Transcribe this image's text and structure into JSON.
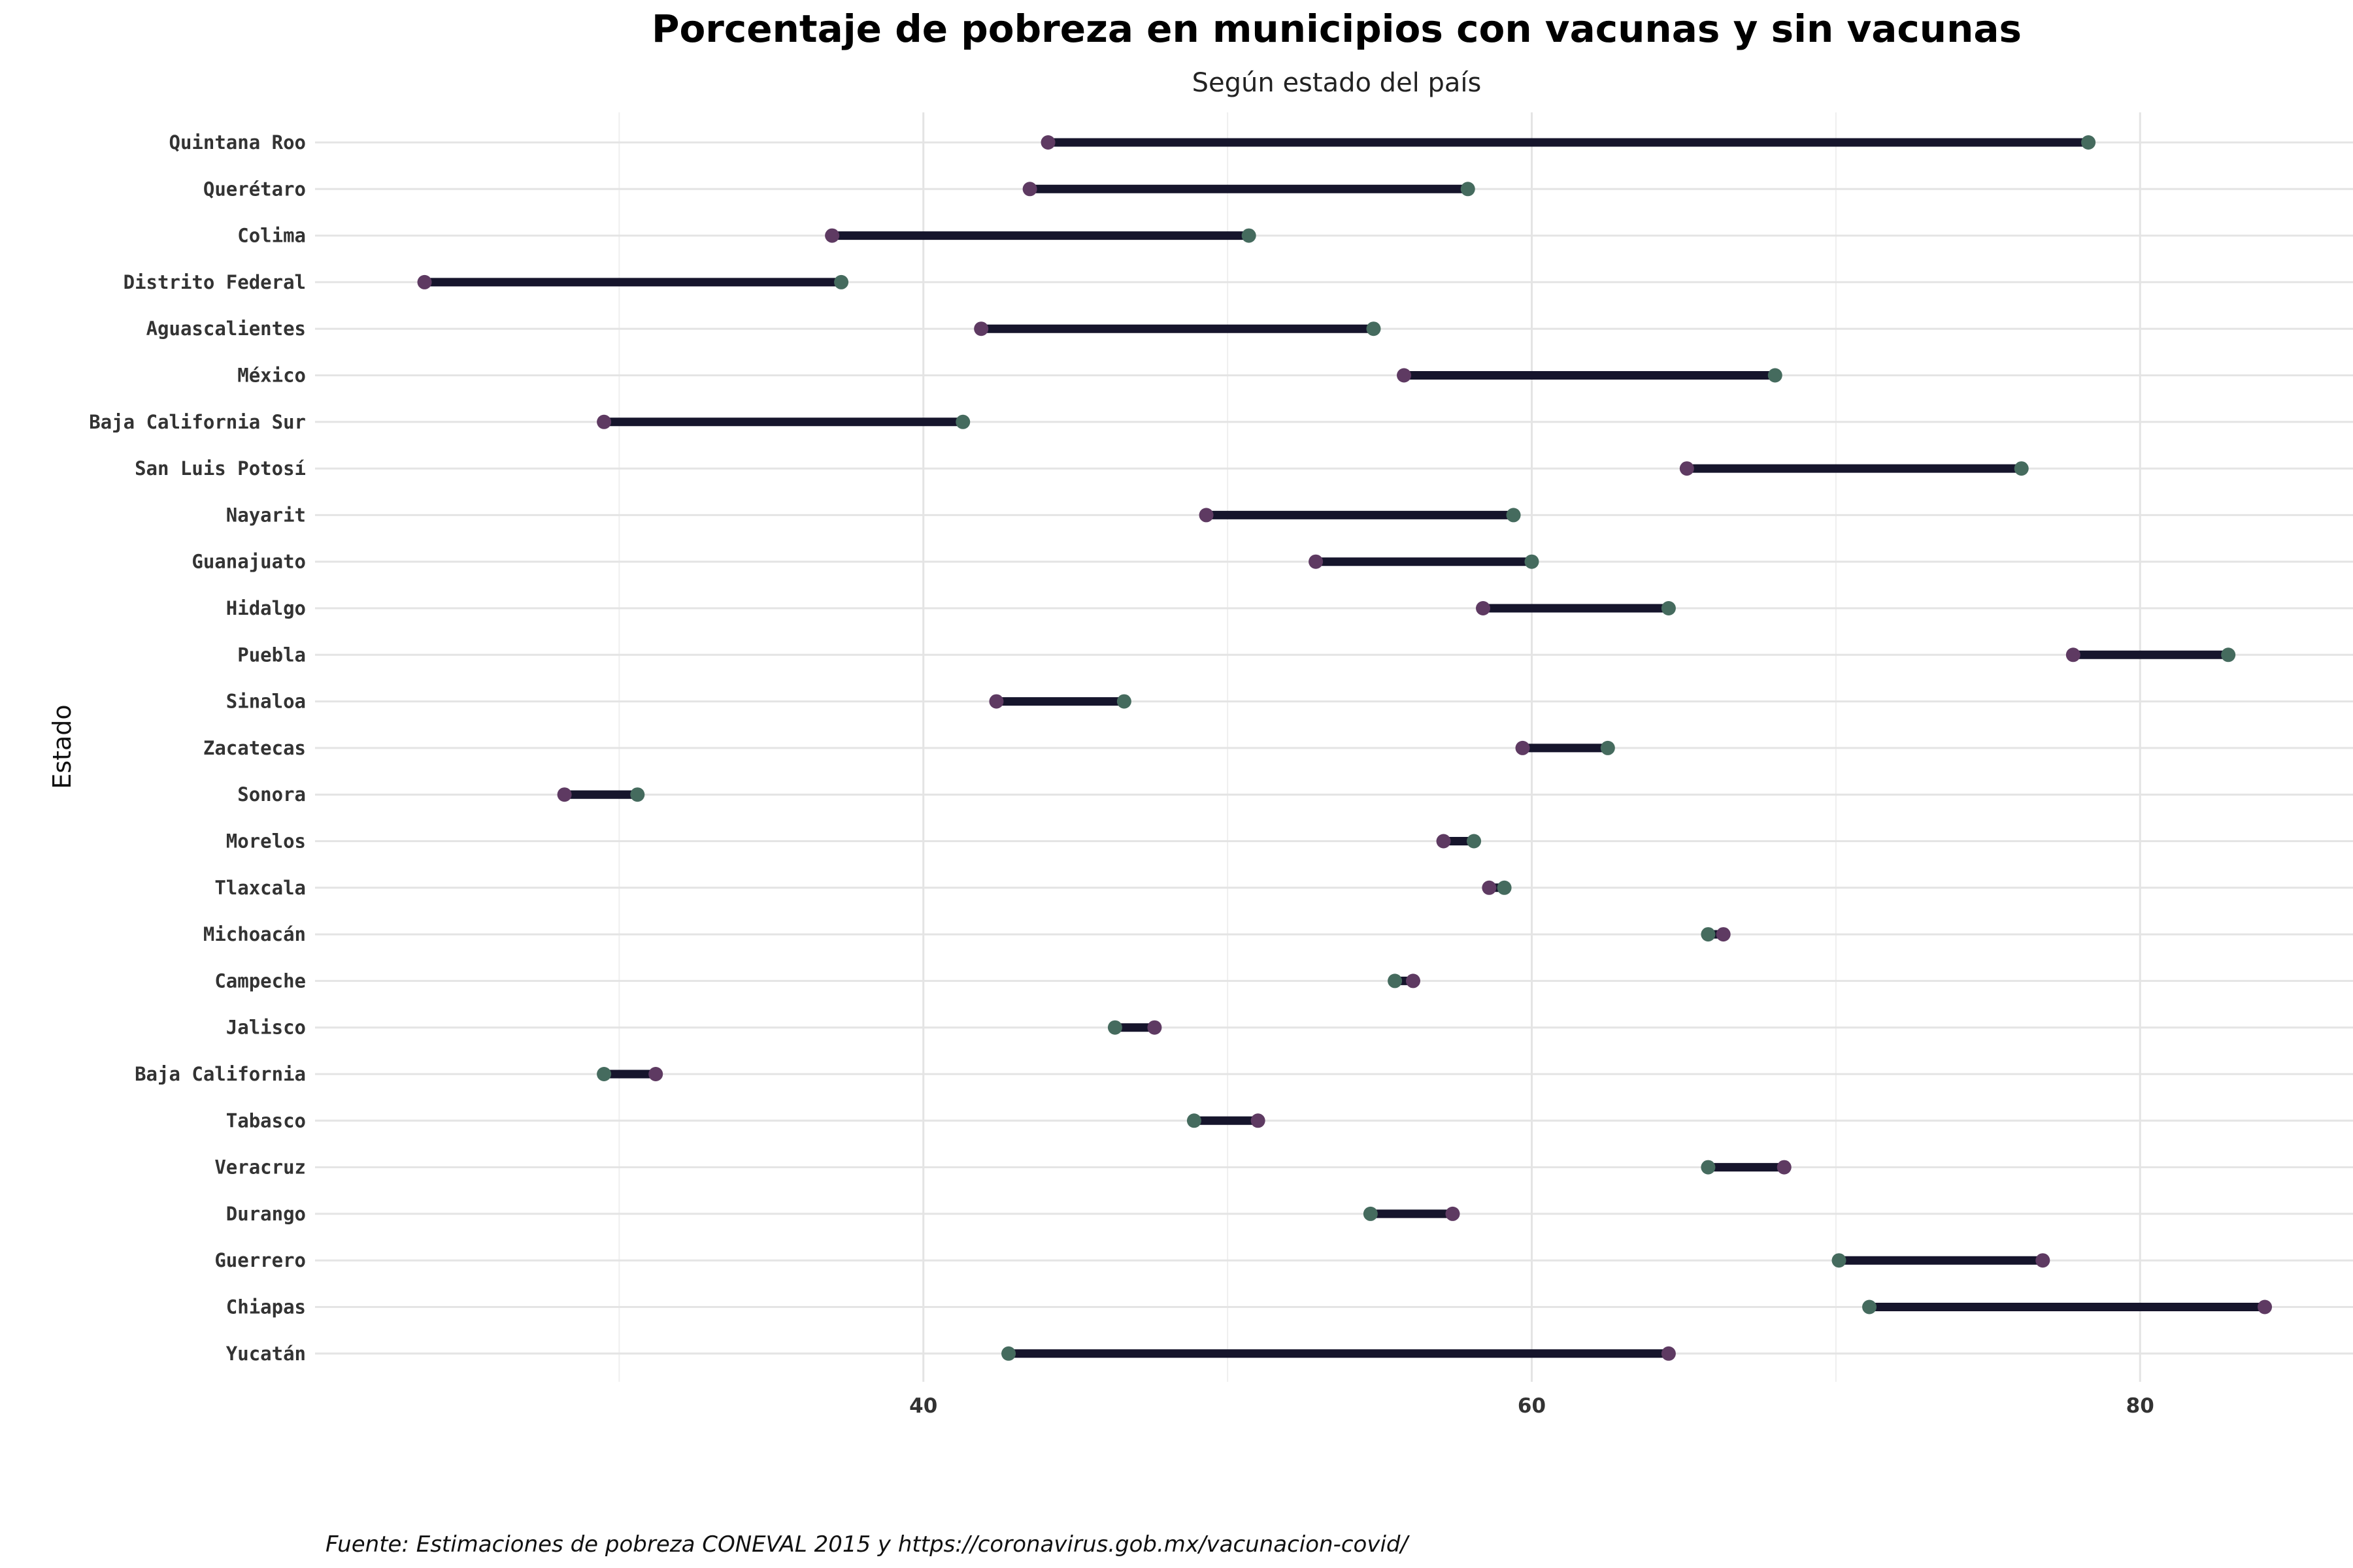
{
  "chart_data": {
    "type": "dumbbell",
    "title": "Porcentaje de pobreza en municipios con vacunas y sin vacunas",
    "subtitle": "Según estado del país",
    "ylabel": "Estado",
    "caption": "Fuente: Estimaciones de pobreza CONEVAL 2015 y https://coronavirus.gob.mx/vacunacion-covid/",
    "xlim": [
      20,
      87
    ],
    "xticks": [
      40,
      60,
      80
    ],
    "grid": true,
    "colors": {
      "segment": "#16152c",
      "purple": "#5e3a62",
      "green": "#456b5e"
    },
    "rows": [
      {
        "estado": "Quintana Roo",
        "purple": 44.1,
        "green": 78.3
      },
      {
        "estado": "Querétaro",
        "purple": 43.5,
        "green": 57.9
      },
      {
        "estado": "Colima",
        "purple": 37.0,
        "green": 50.7
      },
      {
        "estado": "Distrito Federal",
        "purple": 23.6,
        "green": 37.3
      },
      {
        "estado": "Aguascalientes",
        "purple": 41.9,
        "green": 54.8
      },
      {
        "estado": "México",
        "purple": 55.8,
        "green": 68.0
      },
      {
        "estado": "Baja California Sur",
        "purple": 29.5,
        "green": 41.3
      },
      {
        "estado": "San Luis Potosí",
        "purple": 65.1,
        "green": 76.1
      },
      {
        "estado": "Nayarit",
        "purple": 49.3,
        "green": 59.4
      },
      {
        "estado": "Guanajuato",
        "purple": 52.9,
        "green": 60.0
      },
      {
        "estado": "Hidalgo",
        "purple": 58.4,
        "green": 64.5
      },
      {
        "estado": "Puebla",
        "purple": 77.8,
        "green": 82.9
      },
      {
        "estado": "Sinaloa",
        "purple": 42.4,
        "green": 46.6
      },
      {
        "estado": "Zacatecas",
        "purple": 59.7,
        "green": 62.5
      },
      {
        "estado": "Sonora",
        "purple": 28.2,
        "green": 30.6
      },
      {
        "estado": "Morelos",
        "purple": 57.1,
        "green": 58.1
      },
      {
        "estado": "Tlaxcala",
        "purple": 58.6,
        "green": 59.1
      },
      {
        "estado": "Michoacán",
        "purple": 66.3,
        "green": 65.8
      },
      {
        "estado": "Campeche",
        "purple": 56.1,
        "green": 55.5
      },
      {
        "estado": "Jalisco",
        "purple": 47.6,
        "green": 46.3
      },
      {
        "estado": "Baja California",
        "purple": 31.2,
        "green": 29.5
      },
      {
        "estado": "Tabasco",
        "purple": 51.0,
        "green": 48.9
      },
      {
        "estado": "Veracruz",
        "purple": 68.3,
        "green": 65.8
      },
      {
        "estado": "Durango",
        "purple": 57.4,
        "green": 54.7
      },
      {
        "estado": "Guerrero",
        "purple": 76.8,
        "green": 70.1
      },
      {
        "estado": "Chiapas",
        "purple": 84.1,
        "green": 71.1
      },
      {
        "estado": "Yucatán",
        "purple": 64.5,
        "green": 42.8
      }
    ]
  }
}
